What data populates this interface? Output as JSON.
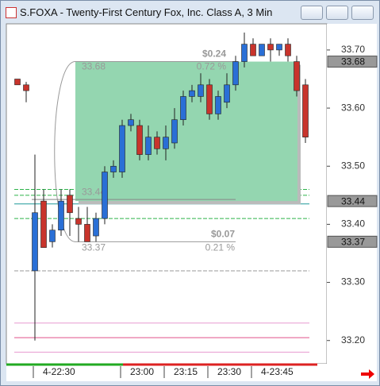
{
  "window_title": "S.FOXA - Twenty-First Century Fox, Inc. Class A, 3 Min",
  "chart_data": {
    "type": "candlestick",
    "categories": [
      null,
      null,
      "4-22:30",
      null,
      null,
      null,
      null,
      null,
      null,
      null,
      null,
      null,
      "23:00",
      null,
      null,
      null,
      null,
      "23:15",
      null,
      null,
      null,
      null,
      "23:30",
      null,
      null,
      null,
      null,
      "4-23:45",
      null,
      null,
      null,
      null,
      null,
      null
    ],
    "open": [
      33.65,
      33.64,
      33.32,
      33.44,
      33.37,
      33.39,
      33.45,
      33.41,
      33.4,
      33.38,
      33.41,
      33.49,
      33.49,
      33.57,
      33.57,
      33.52,
      33.55,
      33.53,
      33.54,
      33.58,
      33.62,
      33.62,
      33.64,
      33.59,
      33.61,
      33.64,
      33.68,
      33.71,
      33.69,
      33.71,
      33.7,
      33.71,
      33.68,
      33.64
    ],
    "high": [
      33.65,
      33.645,
      33.52,
      33.46,
      33.4,
      33.46,
      33.46,
      33.43,
      33.43,
      33.42,
      33.5,
      33.51,
      33.58,
      33.59,
      33.58,
      33.57,
      33.56,
      33.57,
      33.6,
      33.63,
      33.64,
      33.66,
      33.65,
      33.63,
      33.66,
      33.69,
      33.73,
      33.72,
      33.71,
      33.72,
      33.71,
      33.72,
      33.69,
      33.65
    ],
    "low": [
      33.64,
      33.61,
      33.2,
      33.36,
      33.36,
      33.38,
      33.38,
      33.37,
      33.37,
      33.37,
      33.4,
      33.48,
      33.48,
      33.56,
      33.51,
      33.51,
      33.52,
      33.51,
      33.53,
      33.57,
      33.61,
      33.61,
      33.58,
      33.58,
      33.6,
      33.63,
      33.67,
      33.69,
      33.69,
      33.68,
      33.69,
      33.68,
      33.62,
      33.54
    ],
    "close": [
      33.64,
      33.63,
      33.42,
      33.36,
      33.39,
      33.44,
      33.42,
      33.4,
      33.37,
      33.41,
      33.49,
      33.5,
      33.57,
      33.58,
      33.52,
      33.55,
      33.53,
      33.55,
      33.58,
      33.62,
      33.63,
      33.64,
      33.59,
      33.62,
      33.64,
      33.68,
      33.71,
      33.69,
      33.71,
      33.7,
      33.71,
      33.69,
      33.63,
      33.55
    ],
    "up_color": "#2a6fd6",
    "down_color": "#c8342c",
    "ylim": [
      33.16,
      33.745
    ],
    "yticks": [
      {
        "value": 33.2,
        "label": "33.20"
      },
      {
        "value": 33.3,
        "label": "33.30"
      },
      {
        "value": 33.4,
        "label": "33.40"
      },
      {
        "value": 33.5,
        "label": "33.50"
      },
      {
        "value": 33.6,
        "label": "33.60"
      },
      {
        "value": 33.7,
        "label": "33.70"
      }
    ],
    "price_markers": [
      33.68,
      33.44,
      33.37
    ],
    "reference_lines": [
      {
        "value": 33.46,
        "color": "#2db34a",
        "dashed": true
      },
      {
        "value": 33.45,
        "color": "#2db34a",
        "dashed": true
      },
      {
        "value": 33.435,
        "color": "#1f9a9a",
        "dashed": false
      },
      {
        "value": 33.41,
        "color": "#2db34a",
        "dashed": true
      },
      {
        "value": 33.32,
        "color": "#999999",
        "dashed": true
      },
      {
        "value": 33.23,
        "color": "#e79ad0",
        "dashed": false
      },
      {
        "value": 33.205,
        "color": "#e0508a",
        "dashed": false
      },
      {
        "value": 33.18,
        "color": "#e79ad0",
        "dashed": false
      }
    ],
    "measures": [
      {
        "high": 33.68,
        "low": 33.44,
        "change": "$0.24",
        "percent": "0.72 %",
        "fill": "#94d6b0"
      },
      {
        "high": 33.44,
        "low": 33.37,
        "change": "$0.07",
        "percent": "0.21 %"
      }
    ]
  }
}
